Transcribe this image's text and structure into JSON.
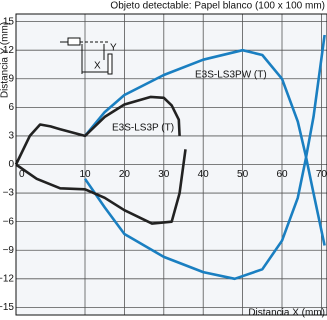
{
  "chart_data": {
    "type": "line",
    "title": "Objeto detectable: Papel blanco (100 x 100 mm)",
    "x_label": "Distancia X (mm)",
    "y_label": "Distancia Y (mm)",
    "inset_labels": [
      "Y",
      "X"
    ],
    "xlim": [
      0,
      70.8
    ],
    "ylim": [
      -15.8,
      15.8
    ],
    "xticks": [
      0,
      10,
      20,
      30,
      40,
      50,
      60,
      70
    ],
    "yticks": [
      15,
      12,
      9,
      6,
      3,
      0,
      {
        "value": -3,
        "label": "−3"
      },
      {
        "value": -6,
        "label": "−6"
      },
      {
        "value": -9,
        "label": "−9"
      },
      {
        "value": -12,
        "label": "−12"
      },
      {
        "value": -15,
        "label": "−15"
      }
    ],
    "grid": true,
    "series": [
      {
        "name": "E3S-LS3PW (T)",
        "color": "#1a7fc1",
        "x": [
          10,
          15,
          20,
          30,
          40,
          50,
          55,
          60,
          64,
          66,
          68,
          70.8,
          null,
          10,
          15,
          20,
          30,
          40,
          48,
          55,
          60,
          64,
          66,
          68,
          70.8
        ],
        "values": [
          3,
          5.5,
          7.3,
          9.4,
          11,
          12,
          11.5,
          9,
          4.5,
          1,
          -3,
          -8.5,
          null,
          -1.5,
          -4.5,
          -7.3,
          -9.7,
          -11.3,
          -12,
          -11,
          -8,
          -3.5,
          0.5,
          5,
          13.6
        ]
      },
      {
        "name": "E3S-LS3P (T)",
        "color": "#222222",
        "x": [
          0,
          2,
          3.5,
          5,
          6.4,
          10,
          15,
          20,
          26.7,
          30,
          32,
          33.8,
          34,
          null,
          0,
          3,
          6.4,
          10,
          15,
          20,
          27,
          32,
          34,
          35.5
        ],
        "values": [
          0,
          3,
          4.2,
          4,
          3.7,
          3,
          5,
          6.3,
          7.1,
          7,
          6.2,
          4.7,
          3,
          null,
          0,
          -1.5,
          -2.5,
          -2.6,
          -3.5,
          -4.8,
          -6.2,
          -6,
          -3,
          1.6
        ]
      }
    ]
  }
}
